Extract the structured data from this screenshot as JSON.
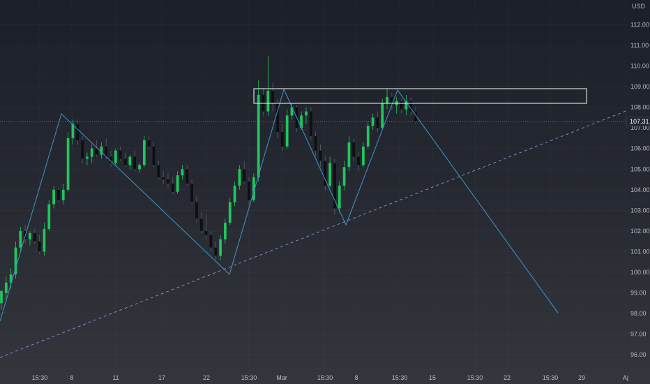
{
  "chart_data": {
    "type": "candlestick",
    "currency_label": "USD",
    "last_price_label": "107.31",
    "last_price": 107.31,
    "y_ticks": [
      "112.00",
      "111.00",
      "110.00",
      "109.00",
      "108.00",
      "107.00",
      "106.00",
      "105.00",
      "104.00",
      "103.00",
      "102.00",
      "101.00",
      "100.00",
      "99.00",
      "98.00",
      "97.00",
      "96.00"
    ],
    "x_labels": [
      "15:30",
      "8",
      "11",
      "17",
      "22",
      "15:30",
      "Mar",
      "15:30",
      "8",
      "15:30",
      "15",
      "15:30",
      "22",
      "15:30",
      "29",
      "Aj"
    ],
    "ylim": [
      95.6,
      113.2
    ],
    "candle_sequence": [
      [
        98.5,
        99.0,
        98.2,
        99.1
      ],
      [
        99.0,
        99.8,
        98.6,
        99.5
      ],
      [
        99.5,
        100.2,
        99.2,
        99.9
      ],
      [
        99.9,
        101.5,
        99.7,
        101.2
      ],
      [
        101.2,
        102.2,
        101.0,
        102.0
      ],
      [
        102.0,
        102.3,
        101.4,
        101.6
      ],
      [
        101.6,
        102.0,
        101.3,
        101.9
      ],
      [
        101.9,
        102.1,
        101.4,
        101.5
      ],
      [
        101.5,
        101.8,
        100.9,
        101.0
      ],
      [
        101.0,
        102.4,
        100.8,
        102.1
      ],
      [
        102.1,
        103.5,
        102.0,
        103.3
      ],
      [
        103.3,
        104.2,
        103.1,
        104.0
      ],
      [
        104.0,
        104.1,
        103.4,
        103.5
      ],
      [
        103.5,
        104.3,
        103.3,
        104.0
      ],
      [
        104.0,
        106.8,
        103.9,
        106.5
      ],
      [
        106.5,
        107.4,
        106.2,
        107.2
      ],
      [
        107.2,
        107.4,
        106.2,
        106.4
      ],
      [
        106.4,
        106.6,
        105.3,
        105.5
      ],
      [
        105.5,
        105.8,
        105.2,
        105.6
      ],
      [
        105.6,
        106.2,
        105.3,
        106.0
      ],
      [
        106.0,
        106.4,
        105.6,
        105.7
      ],
      [
        105.7,
        106.3,
        105.5,
        106.1
      ],
      [
        106.1,
        106.5,
        105.5,
        105.6
      ],
      [
        105.6,
        105.9,
        105.1,
        105.3
      ],
      [
        105.3,
        106.0,
        105.2,
        105.9
      ],
      [
        105.9,
        106.1,
        105.4,
        105.5
      ],
      [
        105.5,
        105.8,
        105.1,
        105.2
      ],
      [
        105.2,
        105.7,
        105.0,
        105.6
      ],
      [
        105.6,
        105.9,
        104.9,
        105.0
      ],
      [
        105.0,
        105.3,
        104.8,
        105.2
      ],
      [
        105.2,
        106.6,
        105.1,
        106.4
      ],
      [
        106.4,
        106.6,
        106.0,
        106.1
      ],
      [
        106.1,
        106.3,
        105.1,
        105.2
      ],
      [
        105.2,
        105.4,
        104.5,
        104.6
      ],
      [
        104.6,
        104.9,
        104.3,
        104.5
      ],
      [
        104.5,
        104.8,
        104.1,
        104.3
      ],
      [
        104.3,
        104.6,
        103.8,
        103.9
      ],
      [
        103.9,
        104.9,
        103.8,
        104.7
      ],
      [
        104.7,
        105.2,
        104.5,
        105.0
      ],
      [
        105.0,
        105.2,
        104.2,
        104.3
      ],
      [
        104.3,
        104.5,
        103.3,
        103.4
      ],
      [
        103.4,
        103.7,
        102.4,
        102.6
      ],
      [
        102.6,
        102.9,
        101.9,
        102.0
      ],
      [
        102.0,
        102.8,
        101.6,
        101.8
      ],
      [
        101.8,
        102.0,
        101.0,
        101.2
      ],
      [
        101.2,
        101.5,
        100.6,
        100.8
      ],
      [
        100.8,
        101.8,
        100.6,
        101.6
      ],
      [
        101.6,
        102.6,
        101.4,
        102.4
      ],
      [
        102.4,
        103.6,
        102.3,
        103.4
      ],
      [
        103.4,
        104.4,
        103.2,
        104.2
      ],
      [
        104.2,
        105.2,
        104.0,
        105.0
      ],
      [
        105.0,
        105.4,
        104.3,
        104.4
      ],
      [
        104.4,
        104.6,
        103.2,
        103.5
      ],
      [
        103.5,
        104.8,
        103.4,
        104.6
      ],
      [
        104.6,
        109.3,
        104.4,
        108.6
      ],
      [
        108.6,
        108.9,
        107.6,
        107.8
      ],
      [
        107.8,
        110.5,
        107.6,
        108.8
      ],
      [
        108.8,
        109.2,
        107.8,
        108.2
      ],
      [
        108.2,
        108.4,
        106.5,
        106.8
      ],
      [
        106.8,
        107.2,
        105.9,
        106.1
      ],
      [
        106.1,
        107.9,
        106.0,
        107.6
      ],
      [
        107.6,
        108.2,
        107.4,
        108.0
      ],
      [
        108.0,
        108.1,
        106.8,
        107.0
      ],
      [
        107.0,
        107.8,
        106.9,
        107.6
      ],
      [
        107.6,
        108.0,
        107.2,
        107.8
      ],
      [
        107.8,
        108.0,
        106.4,
        106.6
      ],
      [
        106.6,
        106.8,
        105.6,
        105.9
      ],
      [
        105.9,
        106.2,
        105.1,
        105.4
      ],
      [
        105.4,
        105.6,
        104.0,
        104.2
      ],
      [
        104.2,
        105.6,
        104.1,
        105.3
      ],
      [
        105.3,
        105.5,
        102.8,
        103.1
      ],
      [
        103.1,
        104.4,
        102.9,
        104.2
      ],
      [
        104.2,
        105.4,
        104.0,
        105.1
      ],
      [
        105.1,
        106.6,
        104.9,
        106.3
      ],
      [
        106.3,
        106.5,
        105.4,
        105.6
      ],
      [
        105.6,
        105.8,
        104.9,
        105.2
      ],
      [
        105.2,
        106.3,
        105.1,
        106.1
      ],
      [
        106.1,
        107.3,
        106.0,
        107.1
      ],
      [
        107.1,
        107.7,
        106.9,
        107.5
      ],
      [
        107.5,
        107.8,
        106.8,
        107.0
      ],
      [
        107.0,
        108.4,
        106.9,
        108.2
      ],
      [
        108.2,
        108.9,
        107.9,
        108.5
      ],
      [
        108.5,
        108.7,
        107.9,
        108.1
      ],
      [
        108.1,
        108.5,
        107.7,
        108.3
      ],
      [
        108.3,
        108.4,
        107.7,
        107.9
      ],
      [
        107.9,
        108.6,
        107.6,
        108.3
      ],
      [
        108.3,
        108.5,
        107.6,
        107.8
      ],
      [
        107.8,
        108.0,
        107.2,
        107.31
      ]
    ]
  }
}
